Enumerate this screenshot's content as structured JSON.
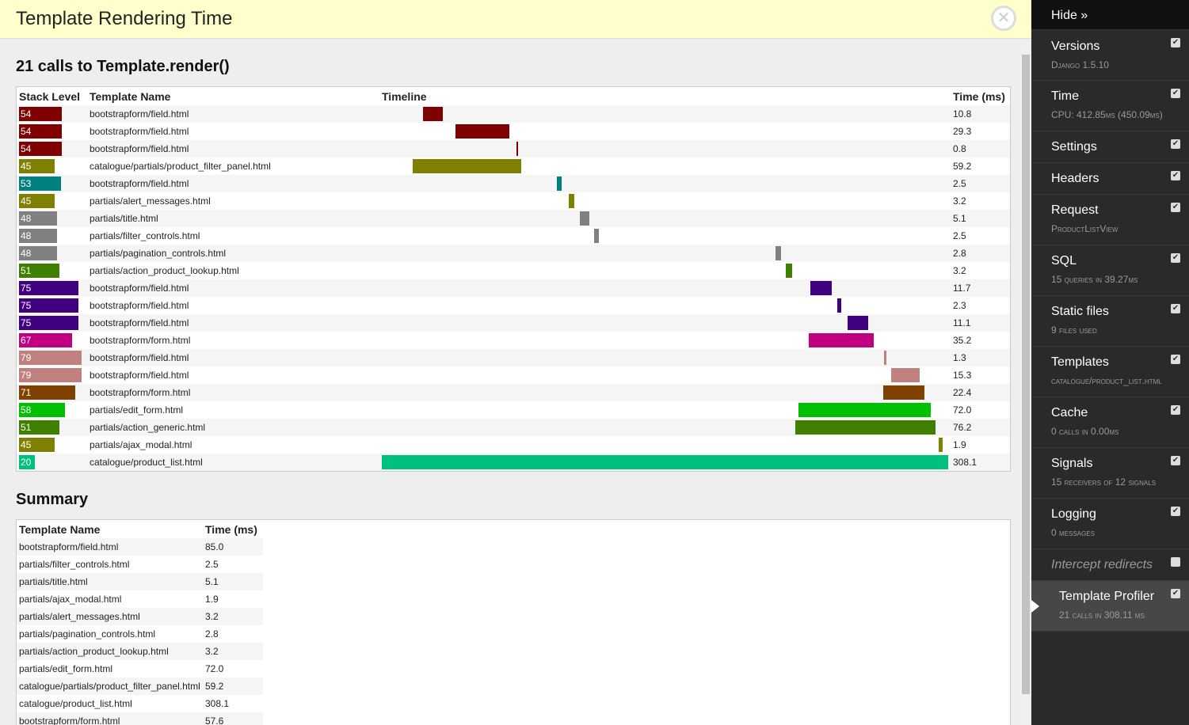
{
  "panel": {
    "title": "Template Rendering Time",
    "close_icon": "close-icon"
  },
  "calls": {
    "heading": "21 calls to Template.render()",
    "headers": [
      "Stack Level",
      "Template Name",
      "Timeline",
      "Time (ms)"
    ],
    "total_ms": 308.1,
    "rows": [
      {
        "level": "54",
        "name": "bootstrapform/field.html",
        "start": 22.4,
        "time": "10.8",
        "color": "#800000"
      },
      {
        "level": "54",
        "name": "bootstrapform/field.html",
        "start": 40.1,
        "time": "29.3",
        "color": "#800000"
      },
      {
        "level": "54",
        "name": "bootstrapform/field.html",
        "start": 73.3,
        "time": "0.8",
        "color": "#800000"
      },
      {
        "level": "45",
        "name": "catalogue/partials/product_filter_panel.html",
        "start": 16.8,
        "time": "59.2",
        "color": "#808000"
      },
      {
        "level": "53",
        "name": "bootstrapform/field.html",
        "start": 95.3,
        "time": "2.5",
        "color": "#008080"
      },
      {
        "level": "45",
        "name": "partials/alert_messages.html",
        "start": 101.7,
        "time": "3.2",
        "color": "#808000"
      },
      {
        "level": "48",
        "name": "partials/title.html",
        "start": 107.8,
        "time": "5.1",
        "color": "#808080"
      },
      {
        "level": "48",
        "name": "partials/filter_controls.html",
        "start": 115.5,
        "time": "2.5",
        "color": "#808080"
      },
      {
        "level": "48",
        "name": "partials/pagination_controls.html",
        "start": 214.2,
        "time": "2.8",
        "color": "#808080"
      },
      {
        "level": "51",
        "name": "partials/action_product_lookup.html",
        "start": 219.8,
        "time": "3.2",
        "color": "#408000"
      },
      {
        "level": "75",
        "name": "bootstrapform/field.html",
        "start": 233.2,
        "time": "11.7",
        "color": "#400080"
      },
      {
        "level": "75",
        "name": "bootstrapform/field.html",
        "start": 247.8,
        "time": "2.3",
        "color": "#400080"
      },
      {
        "level": "75",
        "name": "bootstrapform/field.html",
        "start": 253.4,
        "time": "11.1",
        "color": "#400080"
      },
      {
        "level": "67",
        "name": "bootstrapform/form.html",
        "start": 232.3,
        "time": "35.2",
        "color": "#c00080"
      },
      {
        "level": "79",
        "name": "bootstrapform/field.html",
        "start": 273.3,
        "time": "1.3",
        "color": "#c08080"
      },
      {
        "level": "79",
        "name": "bootstrapform/field.html",
        "start": 277.2,
        "time": "15.3",
        "color": "#c08080"
      },
      {
        "level": "71",
        "name": "bootstrapform/form.html",
        "start": 272.8,
        "time": "22.4",
        "color": "#804000"
      },
      {
        "level": "58",
        "name": "partials/edit_form.html",
        "start": 226.7,
        "time": "72.0",
        "color": "#00c000"
      },
      {
        "level": "51",
        "name": "partials/action_generic.html",
        "start": 225.0,
        "time": "76.2",
        "color": "#408000"
      },
      {
        "level": "45",
        "name": "partials/ajax_modal.html",
        "start": 303.0,
        "time": "1.9",
        "color": "#808000"
      },
      {
        "level": "20",
        "name": "catalogue/product_list.html",
        "start": 0,
        "time": "308.1",
        "color": "#00c080"
      }
    ]
  },
  "summary": {
    "heading": "Summary",
    "headers": [
      "Template Name",
      "Time (ms)"
    ],
    "rows": [
      {
        "name": "bootstrapform/field.html",
        "time": "85.0"
      },
      {
        "name": "partials/filter_controls.html",
        "time": "2.5"
      },
      {
        "name": "partials/title.html",
        "time": "5.1"
      },
      {
        "name": "partials/ajax_modal.html",
        "time": "1.9"
      },
      {
        "name": "partials/alert_messages.html",
        "time": "3.2"
      },
      {
        "name": "partials/pagination_controls.html",
        "time": "2.8"
      },
      {
        "name": "partials/action_product_lookup.html",
        "time": "3.2"
      },
      {
        "name": "partials/edit_form.html",
        "time": "72.0"
      },
      {
        "name": "catalogue/partials/product_filter_panel.html",
        "time": "59.2"
      },
      {
        "name": "catalogue/product_list.html",
        "time": "308.1"
      },
      {
        "name": "bootstrapform/form.html",
        "time": "57.6"
      }
    ]
  },
  "sidebar": {
    "hide": "Hide »",
    "items": [
      {
        "title": "Versions",
        "sub": "Django 1.5.10",
        "checked": true
      },
      {
        "title": "Time",
        "sub": "CPU: 412.85ms (450.09ms)",
        "checked": true
      },
      {
        "title": "Settings",
        "sub": "",
        "checked": true
      },
      {
        "title": "Headers",
        "sub": "",
        "checked": true
      },
      {
        "title": "Request",
        "sub": "ProductListView",
        "checked": true
      },
      {
        "title": "SQL",
        "sub": "15 queries in 39.27ms",
        "checked": true
      },
      {
        "title": "Static files",
        "sub": "9 files used",
        "checked": true
      },
      {
        "title": "Templates",
        "sub": "catalogue/product_list.html",
        "checked": true
      },
      {
        "title": "Cache",
        "sub": "0 calls in 0.00ms",
        "checked": true
      },
      {
        "title": "Signals",
        "sub": "15 receivers of 12 signals",
        "checked": true
      },
      {
        "title": "Logging",
        "sub": "0 messages",
        "checked": true
      },
      {
        "title": "Intercept redirects",
        "sub": "",
        "checked": false
      },
      {
        "title": "Template Profiler",
        "sub": "21 calls in 308.11 ms",
        "checked": true,
        "active": true
      }
    ]
  }
}
